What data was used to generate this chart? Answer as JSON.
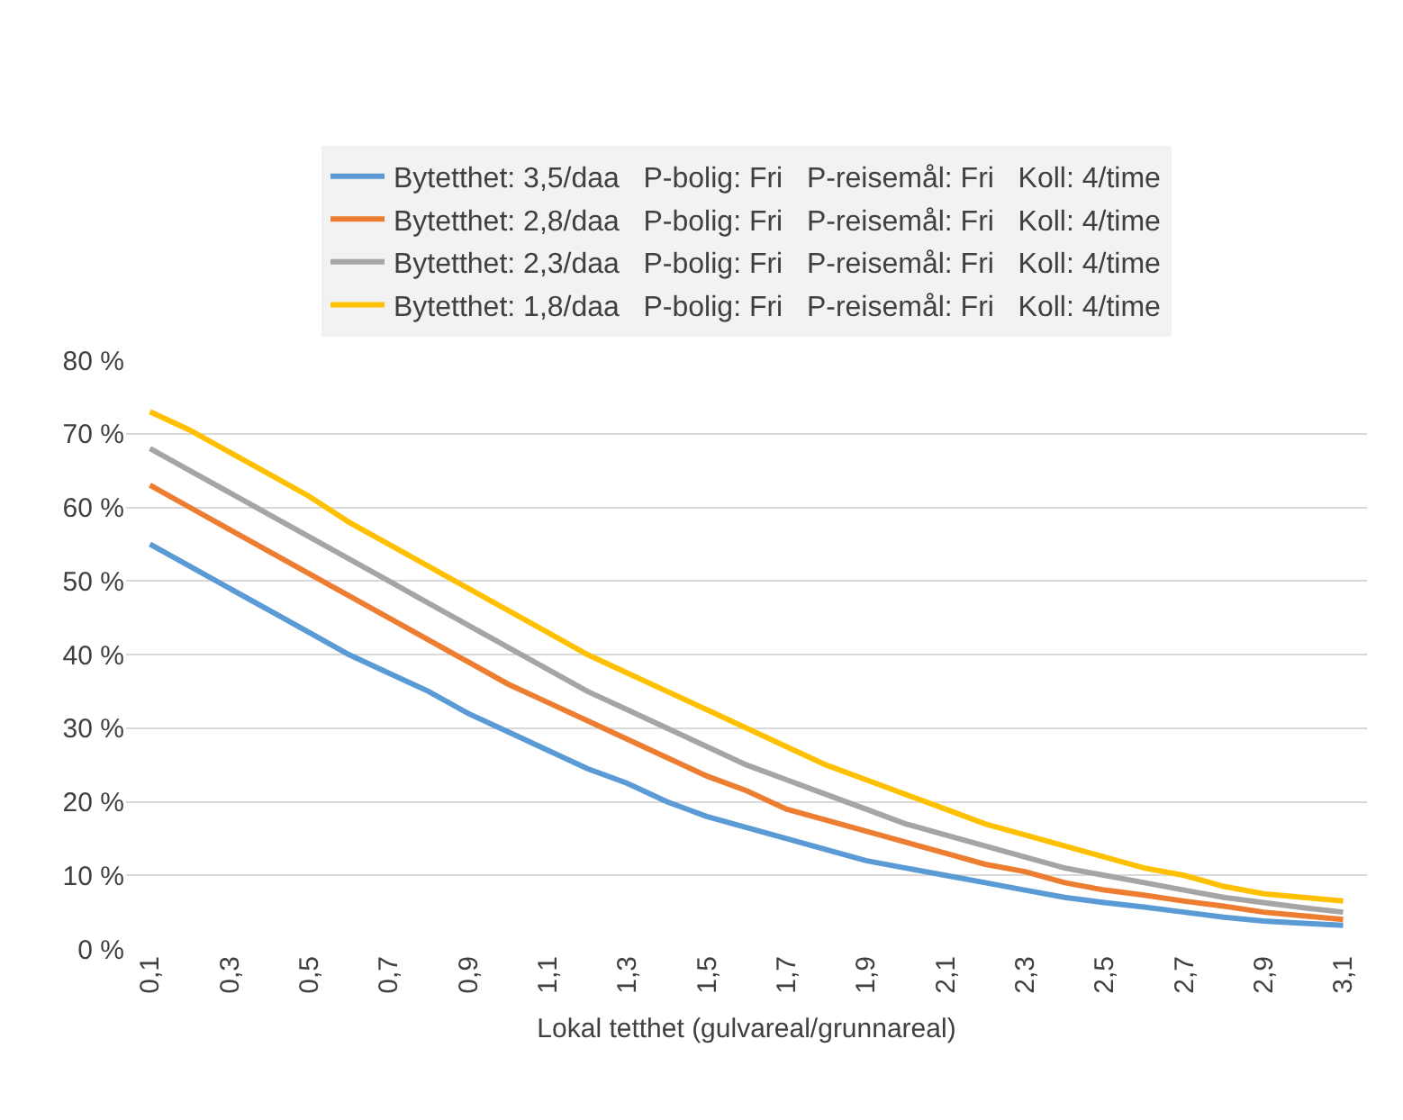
{
  "chart_data": {
    "type": "line",
    "xlabel": "Lokal tetthet (gulvareal/grunnareal)",
    "categories": [
      "0,1",
      null,
      "0,3",
      null,
      "0,5",
      null,
      "0,7",
      null,
      "0,9",
      null,
      "1,1",
      null,
      "1,3",
      null,
      "1,5",
      null,
      "1,7",
      null,
      "1,9",
      null,
      "2,1",
      null,
      "2,3",
      null,
      "2,5",
      null,
      "2,7",
      null,
      "2,9",
      null,
      "3,1"
    ],
    "series": [
      {
        "name": "Bytetthet: 3,5/daa   P-bolig: Fri   P-reisemål: Fri   Koll: 4/time",
        "color": "#5b9bd5",
        "values": [
          55,
          52,
          49,
          46,
          43,
          40,
          37.5,
          35,
          32,
          29.5,
          27,
          24.5,
          22.5,
          20,
          18,
          16.5,
          15,
          13.5,
          12,
          11,
          10,
          9,
          8,
          7,
          6.3,
          5.7,
          5,
          4.3,
          3.8,
          3.5,
          3.2
        ]
      },
      {
        "name": "Bytetthet: 2,8/daa   P-bolig: Fri   P-reisemål: Fri   Koll: 4/time",
        "color": "#ed7d31",
        "values": [
          63,
          60,
          57,
          54,
          51,
          48,
          45,
          42,
          39,
          36,
          33.5,
          31,
          28.5,
          26,
          23.5,
          21.5,
          19,
          17.5,
          16,
          14.5,
          13,
          11.5,
          10.5,
          9,
          8,
          7.3,
          6.5,
          5.8,
          5,
          4.5,
          4
        ]
      },
      {
        "name": "Bytetthet: 2,3/daa   P-bolig: Fri   P-reisemål: Fri   Koll: 4/time",
        "color": "#a5a5a5",
        "values": [
          68,
          65,
          62,
          59,
          56,
          53,
          50,
          47,
          44,
          41,
          38,
          35,
          32.5,
          30,
          27.5,
          25,
          23,
          21,
          19,
          17,
          15.5,
          14,
          12.5,
          11,
          10,
          9,
          8,
          7,
          6.3,
          5.6,
          5
        ]
      },
      {
        "name": "Bytetthet: 1,8/daa   P-bolig: Fri   P-reisemål: Fri   Koll: 4/time",
        "color": "#ffc000",
        "values": [
          73,
          70.5,
          67.5,
          64.5,
          61.5,
          58,
          55,
          52,
          49,
          46,
          43,
          40,
          37.5,
          35,
          32.5,
          30,
          27.5,
          25,
          23,
          21,
          19,
          17,
          15.5,
          14,
          12.5,
          11,
          10,
          8.5,
          7.5,
          7,
          6.5
        ]
      }
    ],
    "ylim": [
      0,
      80
    ],
    "yticks": [
      {
        "value": 0,
        "label": "0 %"
      },
      {
        "value": 10,
        "label": "10 %"
      },
      {
        "value": 20,
        "label": "20 %"
      },
      {
        "value": 30,
        "label": "30 %"
      },
      {
        "value": 40,
        "label": "40 %"
      },
      {
        "value": 50,
        "label": "50 %"
      },
      {
        "value": 60,
        "label": "60 %"
      },
      {
        "value": 70,
        "label": "70 %"
      },
      {
        "value": 80,
        "label": "80 %"
      }
    ],
    "grid": "y",
    "legend": "top",
    "marker": "none",
    "line_style": "solid"
  }
}
